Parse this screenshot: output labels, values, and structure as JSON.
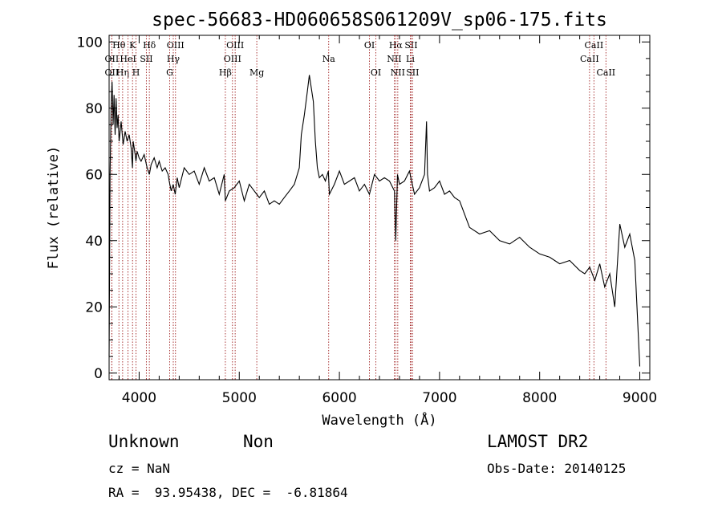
{
  "chart_data": {
    "type": "line",
    "title": "spec-56683-HD060658S061209V_sp06-175.fits",
    "xlabel": "Wavelength (Å)",
    "ylabel": "Flux (relative)",
    "xlim": [
      3700,
      9100
    ],
    "ylim": [
      -2,
      102
    ],
    "xticks": [
      4000,
      5000,
      6000,
      7000,
      8000,
      9000
    ],
    "yticks": [
      0,
      20,
      40,
      60,
      80,
      100
    ],
    "grid": false,
    "series": [
      {
        "x": [
          3700,
          3710,
          3720,
          3730,
          3740,
          3750,
          3760,
          3770,
          3780,
          3790,
          3800,
          3820,
          3840,
          3860,
          3880,
          3900,
          3920,
          3933,
          3940,
          3960,
          3968,
          3980,
          4000,
          4020,
          4050,
          4080,
          4102,
          4120,
          4150,
          4180,
          4200,
          4230,
          4260,
          4290,
          4300,
          4320,
          4340,
          4360,
          4380,
          4400,
          4450,
          4500,
          4550,
          4600,
          4650,
          4700,
          4750,
          4800,
          4850,
          4861,
          4900,
          4950,
          5000,
          5050,
          5100,
          5150,
          5175,
          5200,
          5250,
          5300,
          5350,
          5400,
          5450,
          5500,
          5550,
          5600,
          5620,
          5650,
          5680,
          5700,
          5720,
          5740,
          5760,
          5780,
          5800,
          5830,
          5860,
          5890,
          5900,
          5950,
          6000,
          6050,
          6100,
          6150,
          6200,
          6250,
          6300,
          6350,
          6400,
          6450,
          6500,
          6550,
          6563,
          6580,
          6600,
          6650,
          6700,
          6750,
          6800,
          6850,
          6870,
          6880,
          6900,
          6950,
          7000,
          7050,
          7100,
          7150,
          7200,
          7250,
          7300,
          7400,
          7500,
          7600,
          7700,
          7800,
          7900,
          8000,
          8100,
          8200,
          8300,
          8400,
          8450,
          8500,
          8550,
          8600,
          8650,
          8700,
          8750,
          8800,
          8850,
          8900,
          8950,
          9000
        ],
        "y": [
          5,
          60,
          80,
          88,
          75,
          84,
          72,
          83,
          74,
          78,
          70,
          76,
          69,
          73,
          70,
          72,
          68,
          62,
          70,
          66,
          64,
          67,
          65,
          64,
          66,
          62,
          60,
          63,
          65,
          62,
          64,
          61,
          62,
          60,
          58,
          55,
          57,
          54,
          59,
          56,
          62,
          60,
          61,
          57,
          62,
          58,
          59,
          54,
          60,
          52,
          55,
          56,
          58,
          52,
          57,
          55,
          54,
          53,
          55,
          51,
          52,
          51,
          53,
          55,
          57,
          62,
          72,
          78,
          85,
          90,
          86,
          82,
          70,
          62,
          59,
          60,
          58,
          61,
          54,
          57,
          61,
          57,
          58,
          59,
          55,
          57,
          54,
          60,
          58,
          59,
          58,
          55,
          40,
          60,
          57,
          58,
          61,
          54,
          56,
          60,
          76,
          60,
          55,
          56,
          58,
          54,
          55,
          53,
          52,
          48,
          44,
          42,
          43,
          40,
          39,
          41,
          38,
          36,
          35,
          33,
          34,
          31,
          30,
          32,
          28,
          33,
          26,
          30,
          20,
          45,
          38,
          42,
          34,
          2
        ]
      }
    ],
    "line_markers": [
      {
        "label": "Hθ",
        "x": 3798,
        "row": 1
      },
      {
        "label": "OII",
        "x": 3727,
        "row": 2
      },
      {
        "label": "OII",
        "x": 3727,
        "row": 3
      },
      {
        "label": "Hη",
        "x": 3835,
        "row": 3
      },
      {
        "label": "K",
        "x": 3934,
        "row": 1
      },
      {
        "label": "HeI",
        "x": 3889,
        "row": 2
      },
      {
        "label": "H",
        "x": 3969,
        "row": 3
      },
      {
        "label": "Hδ",
        "x": 4102,
        "row": 1
      },
      {
        "label": "SII",
        "x": 4072,
        "row": 2
      },
      {
        "label": "OIII",
        "x": 4363,
        "row": 1
      },
      {
        "label": "Hγ",
        "x": 4341,
        "row": 2
      },
      {
        "label": "G",
        "x": 4305,
        "row": 3
      },
      {
        "label": "OIII",
        "x": 4959,
        "row": 1
      },
      {
        "label": "OIII",
        "x": 4932,
        "row": 2
      },
      {
        "label": "Hβ",
        "x": 4861,
        "row": 3
      },
      {
        "label": "Mg",
        "x": 5175,
        "row": 3
      },
      {
        "label": "Na",
        "x": 5893,
        "row": 2
      },
      {
        "label": "OI",
        "x": 6300,
        "row": 1
      },
      {
        "label": "OI",
        "x": 6364,
        "row": 3
      },
      {
        "label": "Hα",
        "x": 6563,
        "row": 1
      },
      {
        "label": "SII",
        "x": 6716,
        "row": 1
      },
      {
        "label": "NII",
        "x": 6548,
        "row": 2
      },
      {
        "label": "Li",
        "x": 6708,
        "row": 2
      },
      {
        "label": "NII",
        "x": 6583,
        "row": 3
      },
      {
        "label": "SII",
        "x": 6731,
        "row": 3
      },
      {
        "label": "CaII",
        "x": 8542,
        "row": 1
      },
      {
        "label": "CaII",
        "x": 8498,
        "row": 2
      },
      {
        "label": "CaII",
        "x": 8662,
        "row": 3
      }
    ]
  },
  "info": {
    "class": "Unknown",
    "subclass": "Non",
    "survey": "LAMOST DR2",
    "cz": "cz = NaN",
    "obs_date": "Obs-Date: 20140125",
    "coords": "RA =  93.95438, DEC =  -6.81864"
  }
}
